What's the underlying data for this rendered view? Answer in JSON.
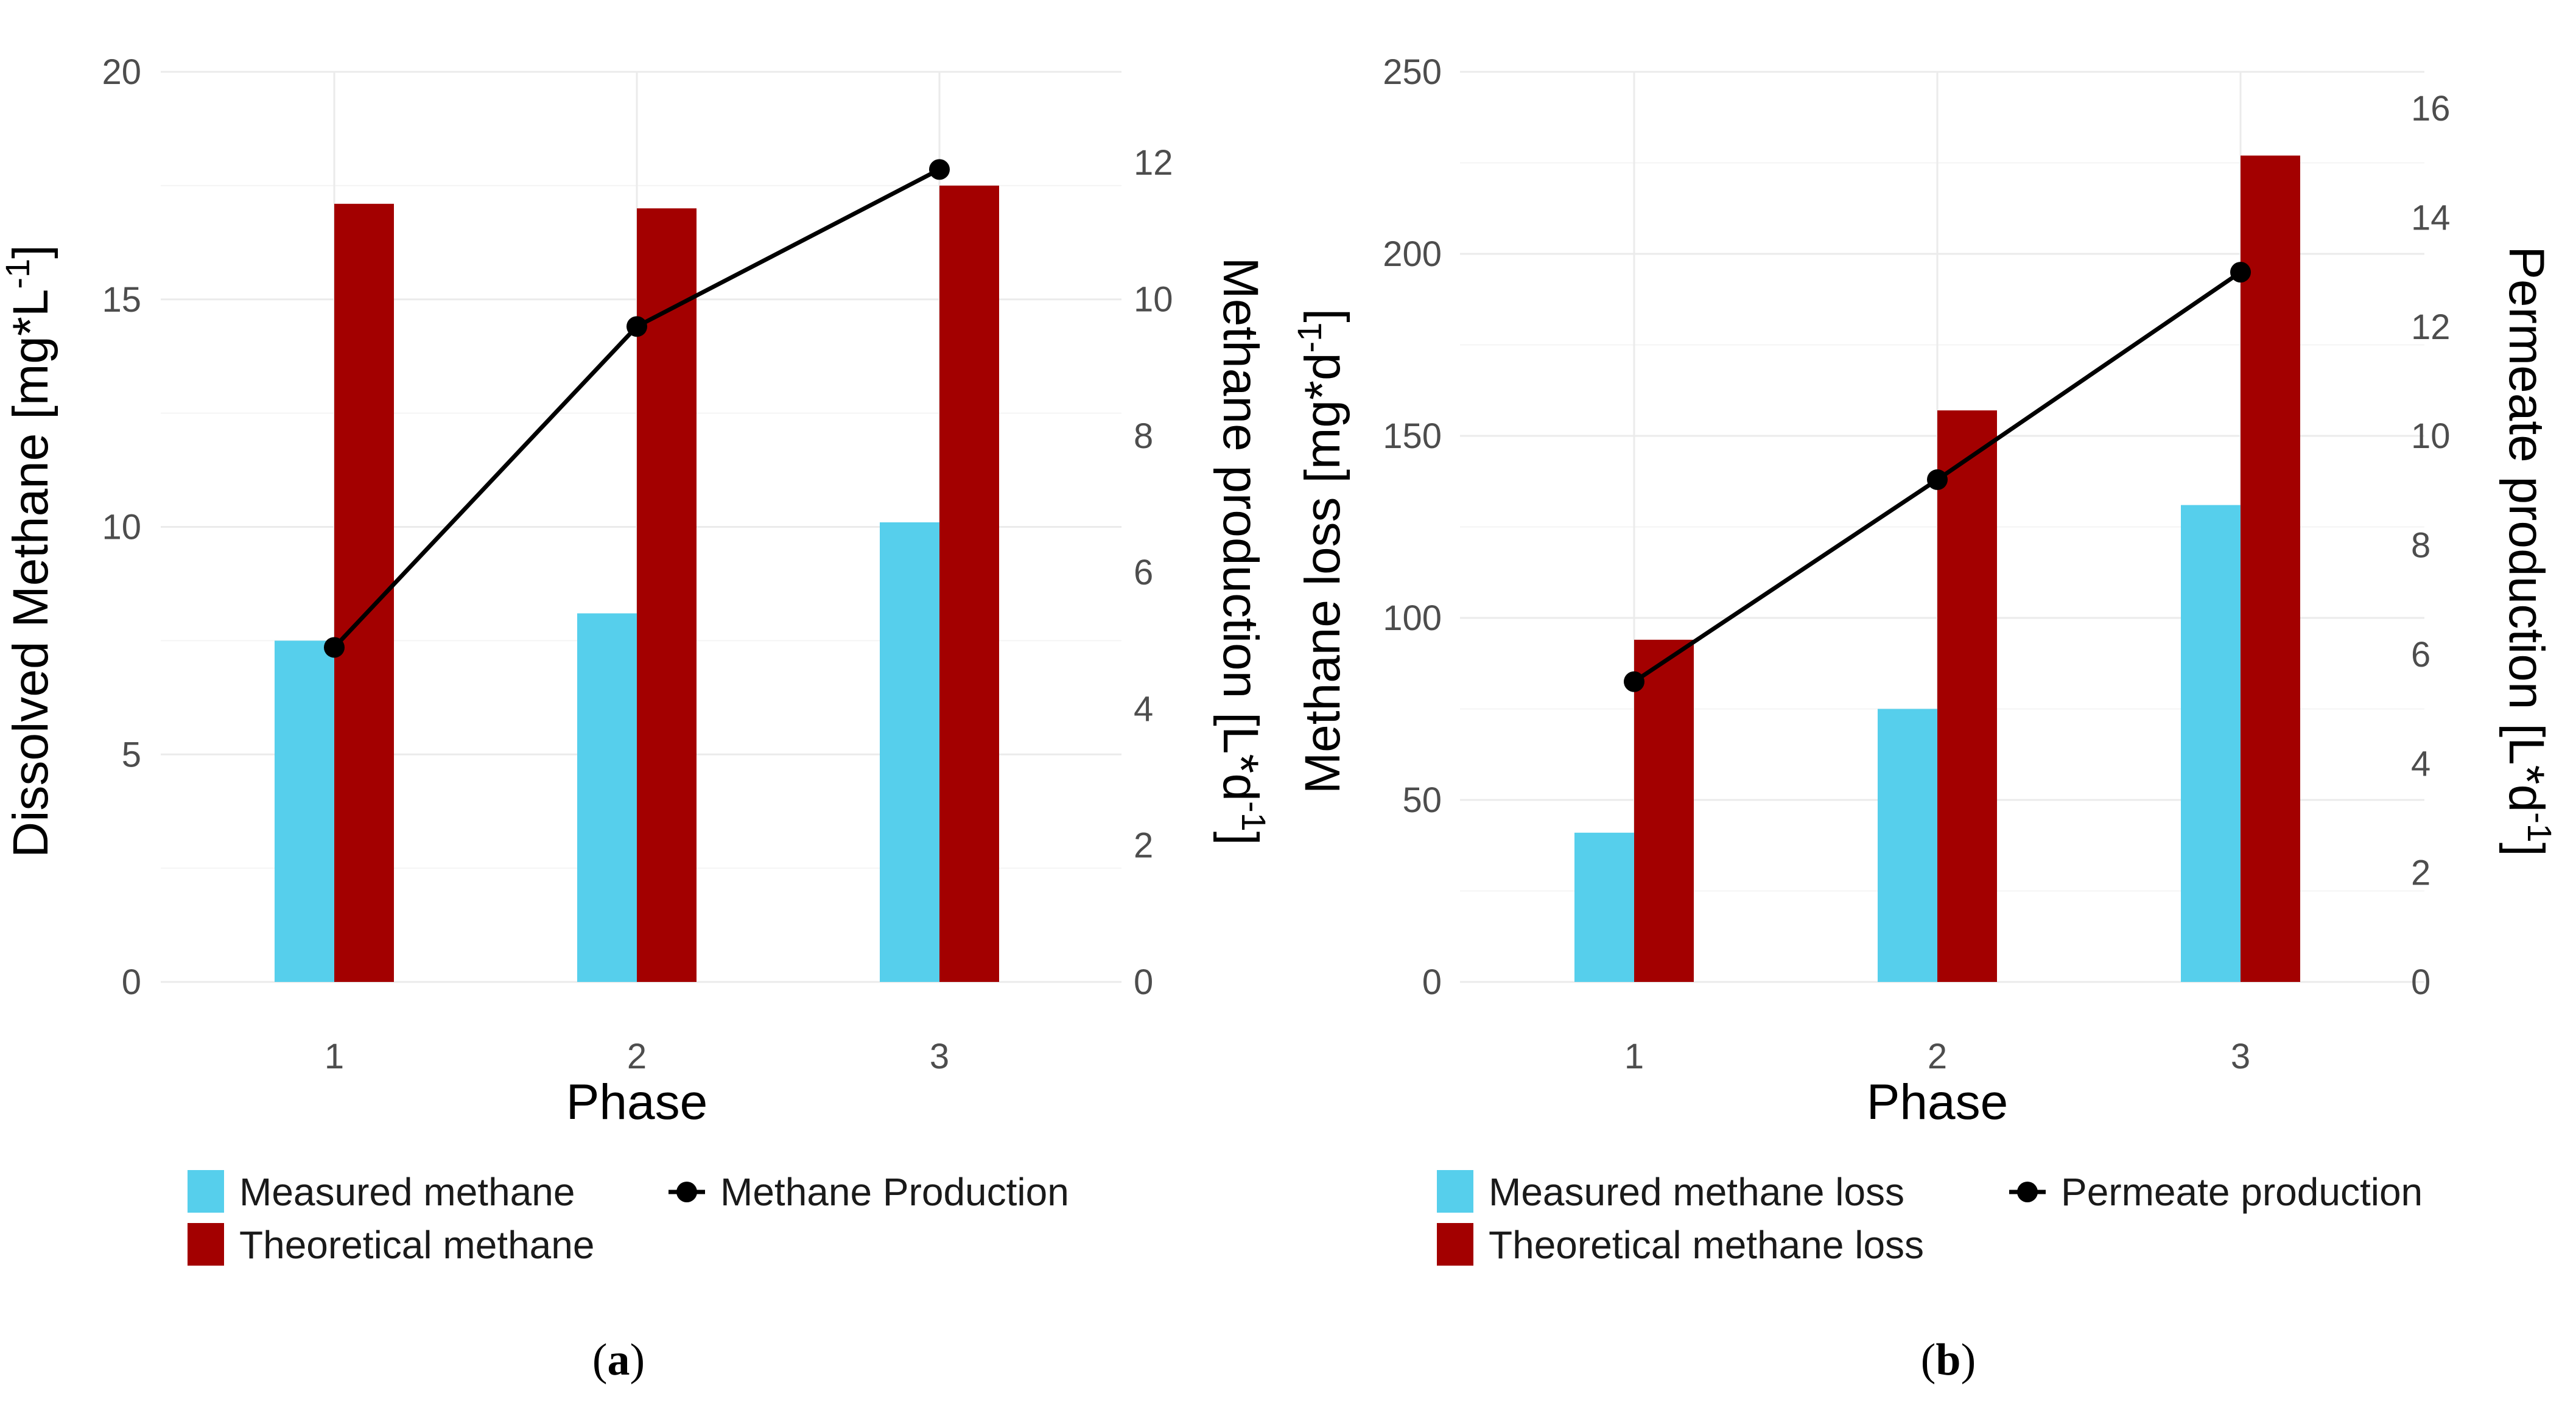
{
  "colors": {
    "measured": "#56CFEC",
    "theoretical": "#A30000",
    "line": "#000000"
  },
  "chart_data": [
    {
      "type": "bar+line",
      "panel_label": "a",
      "xlabel": "Phase",
      "ylabel": "Dissolved Methane [mg*L",
      "ylabel_sup": "-1",
      "ylabel_close": "]",
      "y2label": "Methane production [L*d",
      "y2label_sup": "-1",
      "y2label_close": "]",
      "categories": [
        "1",
        "2",
        "3"
      ],
      "ylim": [
        0,
        20
      ],
      "yticks": [
        0,
        5,
        10,
        15,
        20
      ],
      "y2lim": [
        0,
        13.33
      ],
      "y2ticks": [
        0,
        2,
        4,
        6,
        8,
        10,
        12
      ],
      "series": [
        {
          "name": "Measured methane",
          "kind": "bar",
          "axis": "left",
          "values": [
            7.5,
            8.1,
            10.1
          ]
        },
        {
          "name": "Theoretical methane",
          "kind": "bar",
          "axis": "left",
          "values": [
            17.1,
            17.0,
            17.5
          ]
        },
        {
          "name": "Methane Production",
          "kind": "line",
          "axis": "right",
          "values": [
            4.9,
            9.6,
            11.9
          ]
        }
      ]
    },
    {
      "type": "bar+line",
      "panel_label": "b",
      "xlabel": "Phase",
      "ylabel": "Methane loss [mg*d",
      "ylabel_sup": "-1",
      "ylabel_close": "]",
      "y2label": "Permeate production [L*d",
      "y2label_sup": "-1",
      "y2label_close": "]",
      "categories": [
        "1",
        "2",
        "3"
      ],
      "ylim": [
        0,
        250
      ],
      "yticks": [
        0,
        50,
        100,
        150,
        200,
        250
      ],
      "y2lim": [
        0,
        16.67
      ],
      "y2ticks": [
        0,
        2,
        4,
        6,
        8,
        10,
        12,
        14,
        16
      ],
      "series": [
        {
          "name": "Measured methane loss",
          "kind": "bar",
          "axis": "left",
          "values": [
            41,
            75,
            131
          ]
        },
        {
          "name": "Theoretical methane loss",
          "kind": "bar",
          "axis": "left",
          "values": [
            94,
            157,
            227
          ]
        },
        {
          "name": "Permeate production",
          "kind": "line",
          "axis": "right",
          "values": [
            5.5,
            9.2,
            13.0
          ]
        }
      ]
    }
  ]
}
